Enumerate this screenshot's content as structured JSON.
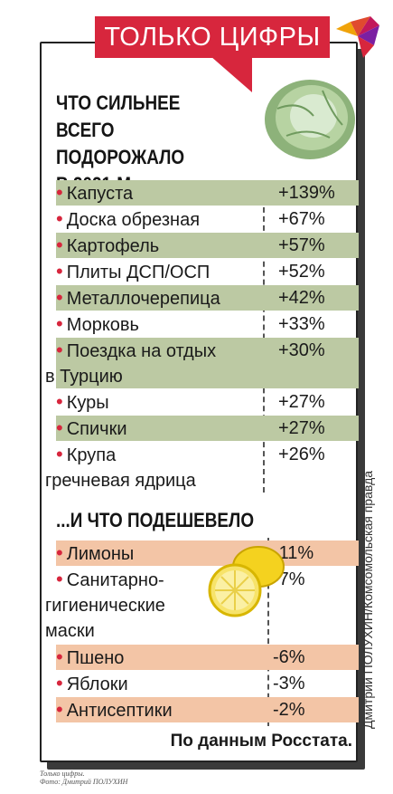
{
  "banner": "ТОЛЬКО ЦИФРЫ",
  "heading_up": [
    "ЧТО СИЛЬНЕЕ",
    "ВСЕГО ПОДОРОЖАЛО",
    "В 2021-М..."
  ],
  "rising": [
    {
      "name": "Капуста",
      "value": "+139%"
    },
    {
      "name": "Доска обрезная",
      "value": "+67%"
    },
    {
      "name": "Картофель",
      "value": "+57%"
    },
    {
      "name": "Плиты ДСП/ОСП",
      "value": "+52%"
    },
    {
      "name": "Металлочерепица",
      "value": "+42%"
    },
    {
      "name": "Морковь",
      "value": "+33%"
    },
    {
      "name": "Поездка на отдых",
      "name2": "в Турцию",
      "value": "+30%"
    },
    {
      "name": "Куры",
      "value": "+27%"
    },
    {
      "name": "Спички",
      "value": "+27%"
    },
    {
      "name": "Крупа",
      "name2": "гречневая ядрица",
      "value": "+26%"
    }
  ],
  "heading_down": "...И ЧТО ПОДЕШЕВЕЛО",
  "falling": [
    {
      "name": "Лимоны",
      "value": "-11%"
    },
    {
      "name": "Санитарно-",
      "name2": "гигиенические",
      "name3": "маски",
      "value": "-7%"
    },
    {
      "name": "Пшено",
      "value": "-6%"
    },
    {
      "name": "Яблоки",
      "value": "-3%"
    },
    {
      "name": "Антисептики",
      "value": "-2%"
    }
  ],
  "source": "По данным Росстата.",
  "credit": "Дмитрий ПОЛУХИН/Комсомольская правда",
  "caption": [
    "Только цифры.",
    "Фото: Дмитрий ПОЛУХИН"
  ],
  "colors": {
    "accent": "#d7263d",
    "green_row": "#bcc9a3",
    "peach_row": "#f3c5a6"
  }
}
